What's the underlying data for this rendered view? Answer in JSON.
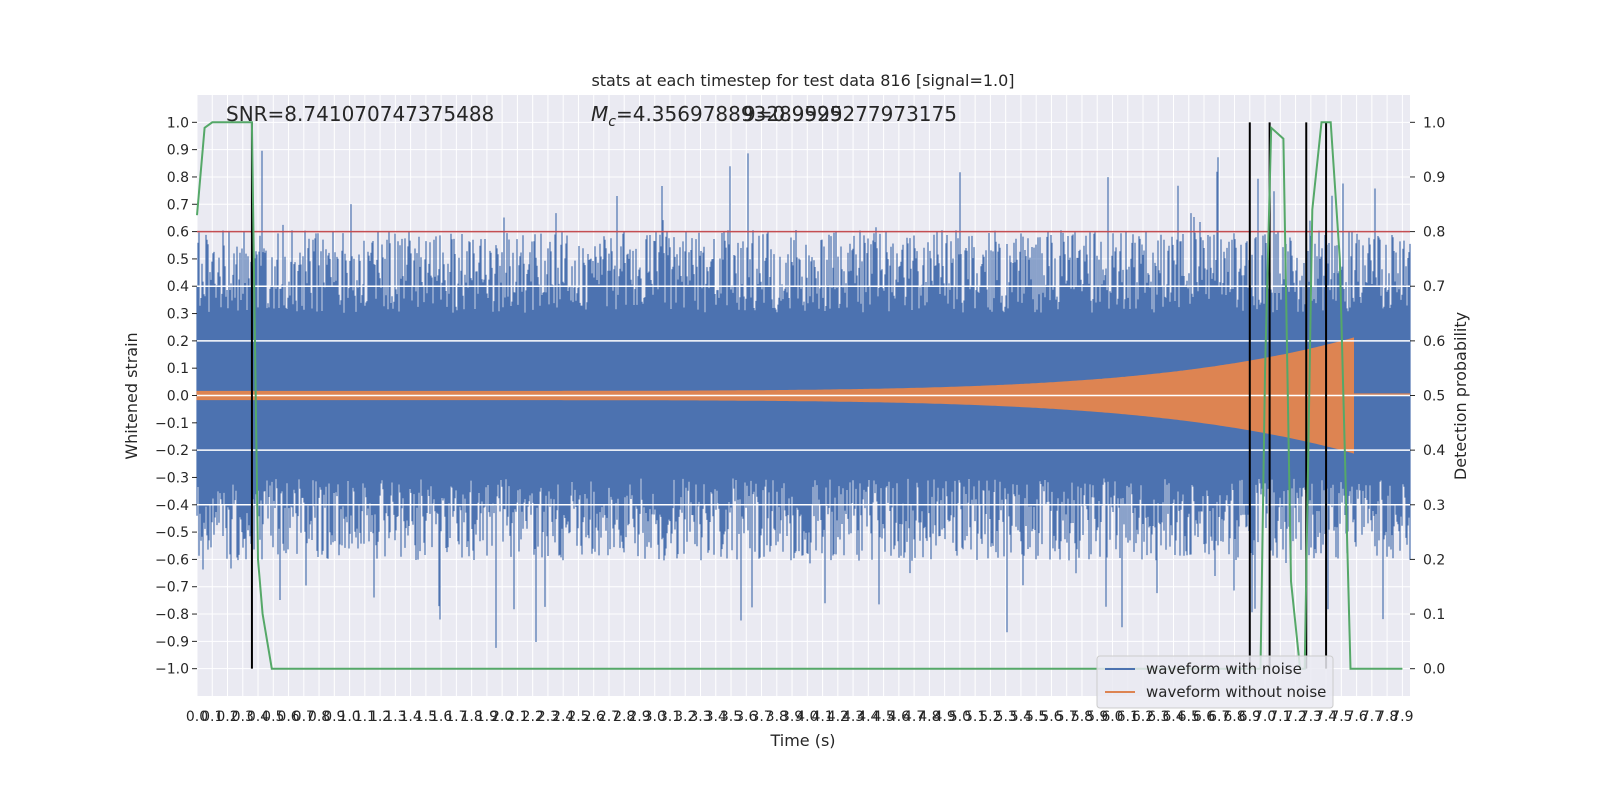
{
  "chart_data": {
    "type": "line",
    "title": "stats at each timestep for test data 816 [signal=1.0]",
    "annotations": {
      "snr": "SNR=8.741070747375488",
      "mc_symbol": "M",
      "mc_sub": "c",
      "mc_value": "=4.356978893289925",
      "overlap_text": "9=0.9599277973175"
    },
    "xlabel": "Time (s)",
    "ylabel": "Whitened strain",
    "y2label": "Detection probability",
    "xlim": [
      0.0,
      7.95
    ],
    "ylim": [
      -1.1,
      1.1
    ],
    "y2lim": [
      -0.05,
      1.05
    ],
    "x_ticks": [
      "0.0",
      "0.1",
      "0.2",
      "0.3",
      "0.4",
      "0.5",
      "0.6",
      "0.7",
      "0.8",
      "0.9",
      "1.0",
      "1.1",
      "1.2",
      "1.3",
      "1.4",
      "1.5",
      "1.6",
      "1.7",
      "1.8",
      "1.9",
      "2.0",
      "2.1",
      "2.2",
      "2.3",
      "2.4",
      "2.5",
      "2.6",
      "2.7",
      "2.8",
      "2.9",
      "3.0",
      "3.1",
      "3.2",
      "3.3",
      "3.4",
      "3.5",
      "3.6",
      "3.7",
      "3.8",
      "3.9",
      "4.0",
      "4.1",
      "4.2",
      "4.3",
      "4.4",
      "4.5",
      "4.6",
      "4.7",
      "4.8",
      "4.9",
      "5.0",
      "5.1",
      "5.2",
      "5.3",
      "5.4",
      "5.5",
      "5.6",
      "5.7",
      "5.8",
      "5.9",
      "6.0",
      "6.1",
      "6.2",
      "6.3",
      "6.4",
      "6.5",
      "6.6",
      "6.7",
      "6.8",
      "6.9",
      "7.0",
      "7.1",
      "7.2",
      "7.3",
      "7.4",
      "7.5",
      "7.6",
      "7.7",
      "7.8",
      "7.9"
    ],
    "y_ticks": [
      "1.0",
      "0.9",
      "0.8",
      "0.7",
      "0.6",
      "0.5",
      "0.4",
      "0.3",
      "0.2",
      "0.1",
      "0.0",
      "−0.1",
      "−0.2",
      "−0.3",
      "−0.4",
      "−0.5",
      "−0.6",
      "−0.7",
      "−0.8",
      "−0.9",
      "−1.0"
    ],
    "y2_ticks": [
      "1.0",
      "0.9",
      "0.8",
      "0.7",
      "0.6",
      "0.5",
      "0.4",
      "0.3",
      "0.2",
      "0.1",
      "0.0"
    ],
    "series": [
      {
        "name": "waveform with noise",
        "color": "#4c72b0",
        "kind": "noise_waveform",
        "typical_amplitude": 0.55,
        "peak_amplitude": 1.0
      },
      {
        "name": "waveform without noise",
        "color": "#dd8452",
        "kind": "chirp",
        "start_amplitude": 0.015,
        "peak_amplitude": 0.21,
        "merger_time": 7.58
      },
      {
        "color": "#55a868",
        "axis": "right",
        "x": [
          0.0,
          0.05,
          0.1,
          0.2,
          0.3,
          0.36,
          0.4,
          0.43,
          0.49,
          6.97,
          7.0,
          7.04,
          7.12,
          7.17,
          7.23,
          7.26,
          7.31,
          7.37,
          7.43,
          7.49,
          7.56,
          7.62,
          7.9
        ],
        "y": [
          0.83,
          0.99,
          1.0,
          1.0,
          1.0,
          1.0,
          0.2,
          0.1,
          0.0,
          0.0,
          0.55,
          0.99,
          0.97,
          0.16,
          0.0,
          0.0,
          0.84,
          1.0,
          1.0,
          0.75,
          0.0,
          0.0,
          0.0
        ]
      }
    ],
    "threshold_line": {
      "y": 0.8,
      "color": "#c44e52"
    },
    "vertical_markers": {
      "x": [
        0.36,
        6.9,
        7.03,
        7.27,
        7.4
      ],
      "color": "#000000"
    },
    "highlight_lines": [
      0.4,
      0.2,
      0.0,
      -0.2,
      -0.4
    ],
    "legend": {
      "placement": "bottom-right"
    }
  }
}
